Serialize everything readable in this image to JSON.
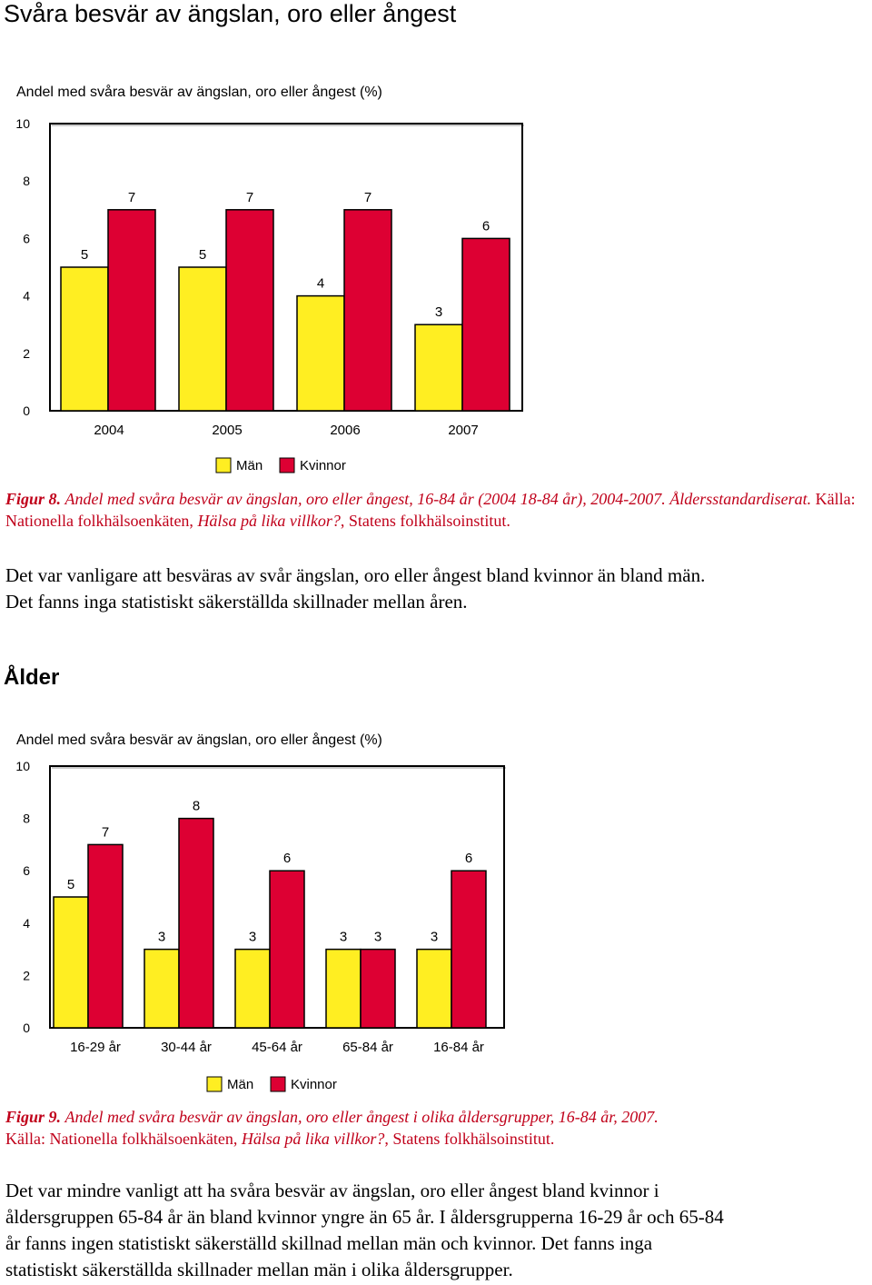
{
  "page_title": "Svåra besvär av ängslan, oro eller ångest",
  "figure8": {
    "caption_label": "Figur 8.",
    "caption_italic": "Andel med svåra besvär av ängslan, oro eller ångest, 16-84 år (2004 18-84 år), 2004-2007. Åldersstandardiserat.",
    "caption_source": "Källa: Nationella folkhälsoenkäten,",
    "caption_source_italic": "Hälsa på lika villkor?",
    "caption_source_end": ", Statens folkhälsoinstitut."
  },
  "paragraph1": [
    "Det var vanligare att besväras av svår ängslan, oro eller ångest bland kvinnor än bland män.",
    "Det fanns inga statistiskt säkerställda skillnader mellan åren."
  ],
  "section_heading": "Ålder",
  "figure9": {
    "caption_label": "Figur 9.",
    "caption_italic": "Andel med svåra besvär av ängslan, oro eller ångest i olika åldersgrupper, 16-84 år, 2007.",
    "caption_source": "Källa: Nationella folkhälsoenkäten,",
    "caption_source_italic": "Hälsa på lika villkor?",
    "caption_source_end": ", Statens folkhälsoinstitut."
  },
  "paragraph2": [
    "Det var mindre vanligt att ha svåra besvär av ängslan, oro eller ångest bland kvinnor i",
    "åldersgruppen 65-84 år än bland kvinnor yngre än 65 år. I åldersgrupperna 16-29 år och 65-84",
    "år fanns ingen statistiskt säkerställd skillnad mellan män och kvinnor. Det fanns inga",
    "statistiskt säkerställda skillnader mellan män i olika åldersgrupper."
  ],
  "colors": {
    "man": "#ffee22",
    "kvinnor": "#dd0033"
  },
  "chart_data": [
    {
      "type": "bar",
      "title": "Andel med svåra besvär av ängslan, oro eller ångest (%)",
      "categories": [
        "2004",
        "2005",
        "2006",
        "2007"
      ],
      "series": [
        {
          "name": "Män",
          "values": [
            5,
            5,
            4,
            3
          ]
        },
        {
          "name": "Kvinnor",
          "values": [
            7,
            7,
            7,
            6
          ]
        }
      ],
      "ylim": [
        0,
        10
      ],
      "yticks": [
        "0",
        "2",
        "4",
        "6",
        "8",
        "10"
      ],
      "grid": false,
      "legend": "bottom"
    },
    {
      "type": "bar",
      "title": "Andel med svåra besvär av ängslan, oro eller ångest (%)",
      "categories": [
        "16-29 år",
        "30-44 år",
        "45-64 år",
        "65-84 år",
        "16-84 år"
      ],
      "series": [
        {
          "name": "Män",
          "values": [
            5,
            3,
            3,
            3,
            3
          ]
        },
        {
          "name": "Kvinnor",
          "values": [
            7,
            8,
            6,
            3,
            6
          ]
        }
      ],
      "ylim": [
        0,
        10
      ],
      "yticks": [
        "0",
        "2",
        "4",
        "6",
        "8",
        "10"
      ],
      "grid": false,
      "legend": "bottom"
    }
  ]
}
